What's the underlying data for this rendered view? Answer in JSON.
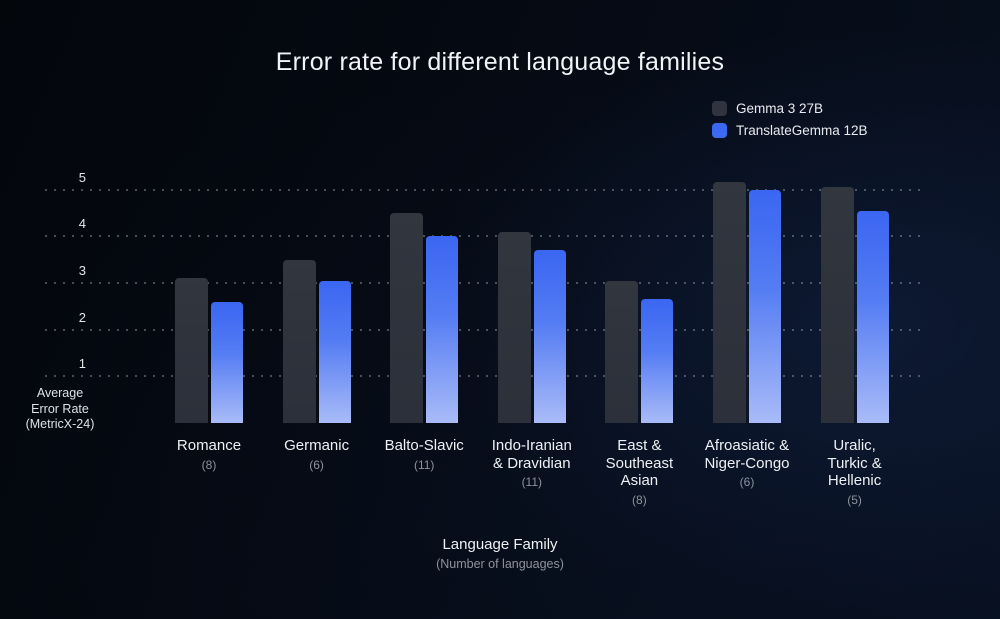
{
  "chart_data": {
    "type": "bar",
    "title": "Error rate for different language families",
    "xlabel": "Language Family",
    "xlabel_sub": "(Number of languages)",
    "ylabel_lines": [
      "Average",
      "Error Rate",
      "(MetricX-24)"
    ],
    "ylim": [
      0,
      6
    ],
    "yticks": [
      1,
      2,
      3,
      4,
      5
    ],
    "grid": "dotted-horizontal",
    "legend_position": "top-right",
    "categories": [
      "Romance",
      "Germanic",
      "Balto-Slavic",
      "Indo-Iranian & Dravidian",
      "East & Southeast Asian",
      "Afroasiatic & Niger-Congo",
      "Uralic, Turkic & Hellenic"
    ],
    "category_label_lines": [
      [
        "Romance"
      ],
      [
        "Germanic"
      ],
      [
        "Balto-Slavic"
      ],
      [
        "Indo-Iranian",
        "& Dravidian"
      ],
      [
        "East &",
        "Southeast",
        "Asian"
      ],
      [
        "Afroasiatic &",
        "Niger-Congo"
      ],
      [
        "Uralic,",
        "Turkic &",
        "Hellenic"
      ]
    ],
    "category_counts": [
      "(8)",
      "(6)",
      "(11)",
      "(11)",
      "(8)",
      "(6)",
      "(5)"
    ],
    "series": [
      {
        "name": "Gemma 3 27B",
        "swatch": "#2f343e",
        "color_top": "#31363f",
        "color_mid": "#2e333c",
        "color_bottom": "#2b303a",
        "values": [
          3.1,
          3.5,
          4.5,
          4.1,
          3.05,
          5.15,
          5.05
        ]
      },
      {
        "name": "TranslateGemma 12B",
        "swatch": "#3d6bf2",
        "color_top": "#3a66f2",
        "color_mid": "#547cf3",
        "color_bottom": "#a9bbf8",
        "values": [
          2.6,
          3.05,
          4.0,
          3.7,
          2.65,
          5.0,
          4.55
        ]
      }
    ],
    "colors": {
      "background": "#05090f",
      "grid_dot": "rgba(230,238,250,0.30)",
      "tick_label": "#e3e7ec",
      "category_label": "#eef1f4",
      "count_label": "#8d939c",
      "title": "#f1f3f6"
    }
  }
}
